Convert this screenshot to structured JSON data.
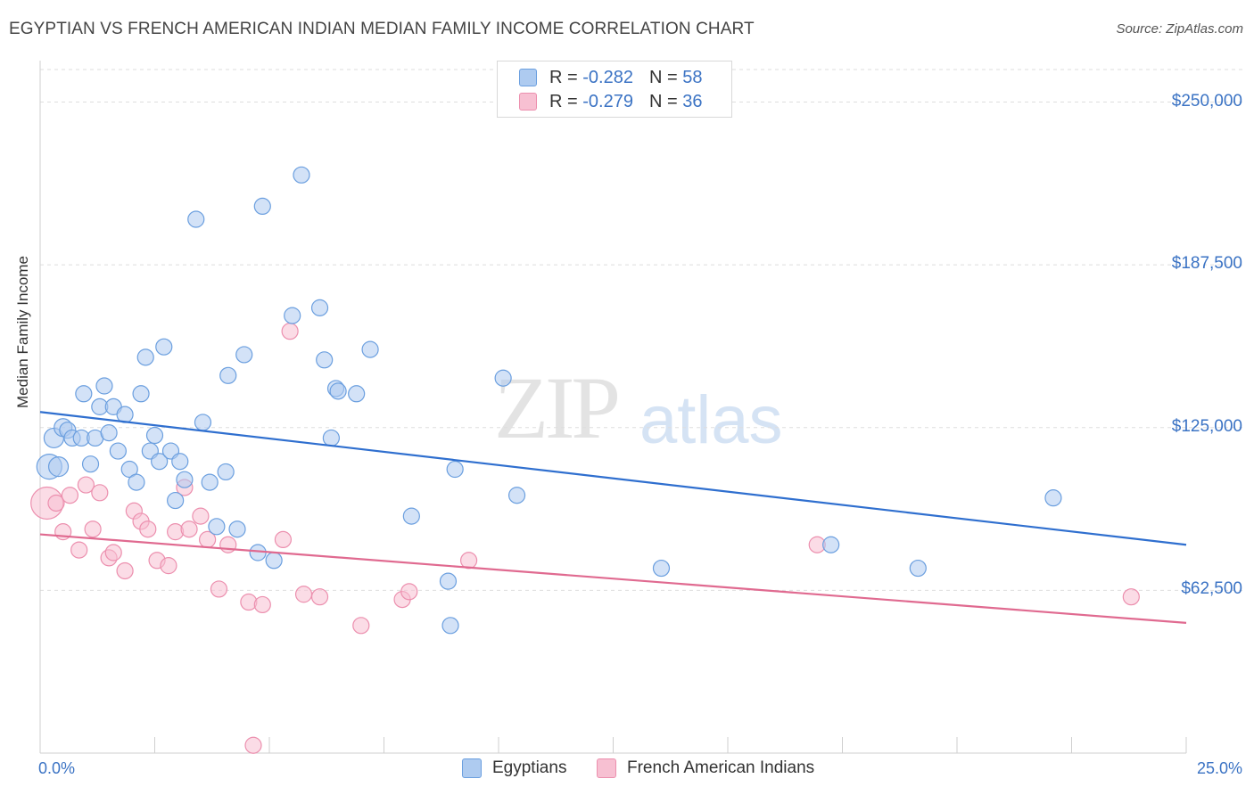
{
  "header": {
    "title": "EGYPTIAN VS FRENCH AMERICAN INDIAN MEDIAN FAMILY INCOME CORRELATION CHART",
    "source": "Source: ZipAtlas.com"
  },
  "watermark": {
    "zip": "ZIP",
    "atlas": "atlas"
  },
  "legend": {
    "rows": [
      {
        "r_label": "R = ",
        "r_value": "-0.282",
        "n_label": "N = ",
        "n_value": "58",
        "color": "#aecbf0"
      },
      {
        "r_label": "R = ",
        "r_value": "-0.279",
        "n_label": "N = ",
        "n_value": "36",
        "color": "#f7c0d2"
      }
    ]
  },
  "chart_data": {
    "type": "scatter",
    "title": "EGYPTIAN VS FRENCH AMERICAN INDIAN MEDIAN FAMILY INCOME CORRELATION CHART",
    "xlabel": "",
    "ylabel": "Median Family Income",
    "xlim": [
      0,
      25
    ],
    "ylim": [
      0,
      262500
    ],
    "x_tick_labels": [
      "0.0%",
      "25.0%"
    ],
    "y_ticks": [
      62500,
      125000,
      187500,
      250000
    ],
    "y_tick_labels": [
      "$62,500",
      "$125,000",
      "$187,500",
      "$250,000"
    ],
    "grid": true,
    "legend_position": "top-center",
    "series": [
      {
        "name": "Egyptians",
        "color": "#6b9fdf",
        "fill": "#aecbf0",
        "trend": {
          "x": [
            0,
            25
          ],
          "y": [
            131000,
            80000
          ],
          "color": "#2f6fcf"
        },
        "points": [
          [
            0.2,
            110000,
            14
          ],
          [
            0.3,
            121000,
            11
          ],
          [
            0.4,
            110000,
            11
          ],
          [
            0.5,
            125000,
            10
          ],
          [
            0.6,
            124000,
            9
          ],
          [
            0.7,
            121000,
            9
          ],
          [
            0.9,
            121000,
            9
          ],
          [
            0.95,
            138000,
            9
          ],
          [
            1.1,
            111000,
            9
          ],
          [
            1.2,
            121000,
            9
          ],
          [
            1.3,
            133000,
            9
          ],
          [
            1.4,
            141000,
            9
          ],
          [
            1.5,
            123000,
            9
          ],
          [
            1.6,
            133000,
            9
          ],
          [
            1.7,
            116000,
            9
          ],
          [
            1.85,
            130000,
            9
          ],
          [
            1.95,
            109000,
            9
          ],
          [
            2.1,
            104000,
            9
          ],
          [
            2.2,
            138000,
            9
          ],
          [
            2.3,
            152000,
            9
          ],
          [
            2.4,
            116000,
            9
          ],
          [
            2.5,
            122000,
            9
          ],
          [
            2.6,
            112000,
            9
          ],
          [
            2.7,
            156000,
            9
          ],
          [
            2.85,
            116000,
            9
          ],
          [
            2.95,
            97000,
            9
          ],
          [
            3.05,
            112000,
            9
          ],
          [
            3.15,
            105000,
            9
          ],
          [
            3.4,
            205000,
            9
          ],
          [
            3.55,
            127000,
            9
          ],
          [
            3.7,
            104000,
            9
          ],
          [
            3.85,
            87000,
            9
          ],
          [
            4.05,
            108000,
            9
          ],
          [
            4.1,
            145000,
            9
          ],
          [
            4.3,
            86000,
            9
          ],
          [
            4.45,
            153000,
            9
          ],
          [
            4.75,
            77000,
            9
          ],
          [
            4.85,
            210000,
            9
          ],
          [
            5.1,
            74000,
            9
          ],
          [
            5.5,
            168000,
            9
          ],
          [
            5.7,
            222000,
            9
          ],
          [
            6.1,
            171000,
            9
          ],
          [
            6.2,
            151000,
            9
          ],
          [
            6.35,
            121000,
            9
          ],
          [
            6.45,
            140000,
            9
          ],
          [
            6.5,
            139000,
            9
          ],
          [
            6.9,
            138000,
            9
          ],
          [
            7.2,
            155000,
            9
          ],
          [
            8.1,
            91000,
            9
          ],
          [
            8.9,
            66000,
            9
          ],
          [
            8.95,
            49000,
            9
          ],
          [
            9.05,
            109000,
            9
          ],
          [
            10.1,
            144000,
            9
          ],
          [
            10.4,
            99000,
            9
          ],
          [
            13.55,
            71000,
            9
          ],
          [
            17.25,
            80000,
            9
          ],
          [
            19.15,
            71000,
            9
          ],
          [
            22.1,
            98000,
            9
          ]
        ]
      },
      {
        "name": "French American Indians",
        "color": "#ec8fae",
        "fill": "#f7c0d2",
        "trend": {
          "x": [
            0,
            25
          ],
          "y": [
            84000,
            50000
          ],
          "color": "#e06a90"
        },
        "points": [
          [
            0.15,
            96000,
            18
          ],
          [
            0.35,
            96000,
            9
          ],
          [
            0.5,
            85000,
            9
          ],
          [
            0.65,
            99000,
            9
          ],
          [
            0.85,
            78000,
            9
          ],
          [
            1.0,
            103000,
            9
          ],
          [
            1.15,
            86000,
            9
          ],
          [
            1.3,
            100000,
            9
          ],
          [
            1.5,
            75000,
            9
          ],
          [
            1.6,
            77000,
            9
          ],
          [
            1.85,
            70000,
            9
          ],
          [
            2.05,
            93000,
            9
          ],
          [
            2.2,
            89000,
            9
          ],
          [
            2.35,
            86000,
            9
          ],
          [
            2.55,
            74000,
            9
          ],
          [
            2.8,
            72000,
            9
          ],
          [
            2.95,
            85000,
            9
          ],
          [
            3.15,
            102000,
            9
          ],
          [
            3.25,
            86000,
            9
          ],
          [
            3.5,
            91000,
            9
          ],
          [
            3.65,
            82000,
            9
          ],
          [
            3.9,
            63000,
            9
          ],
          [
            4.1,
            80000,
            9
          ],
          [
            4.55,
            58000,
            9
          ],
          [
            4.65,
            3000,
            9
          ],
          [
            4.85,
            57000,
            9
          ],
          [
            5.3,
            82000,
            9
          ],
          [
            5.45,
            162000,
            9
          ],
          [
            5.75,
            61000,
            9
          ],
          [
            6.1,
            60000,
            9
          ],
          [
            7.0,
            49000,
            9
          ],
          [
            7.9,
            59000,
            9
          ],
          [
            8.05,
            62000,
            9
          ],
          [
            9.35,
            74000,
            9
          ],
          [
            16.95,
            80000,
            9
          ],
          [
            23.8,
            60000,
            9
          ]
        ]
      }
    ]
  }
}
